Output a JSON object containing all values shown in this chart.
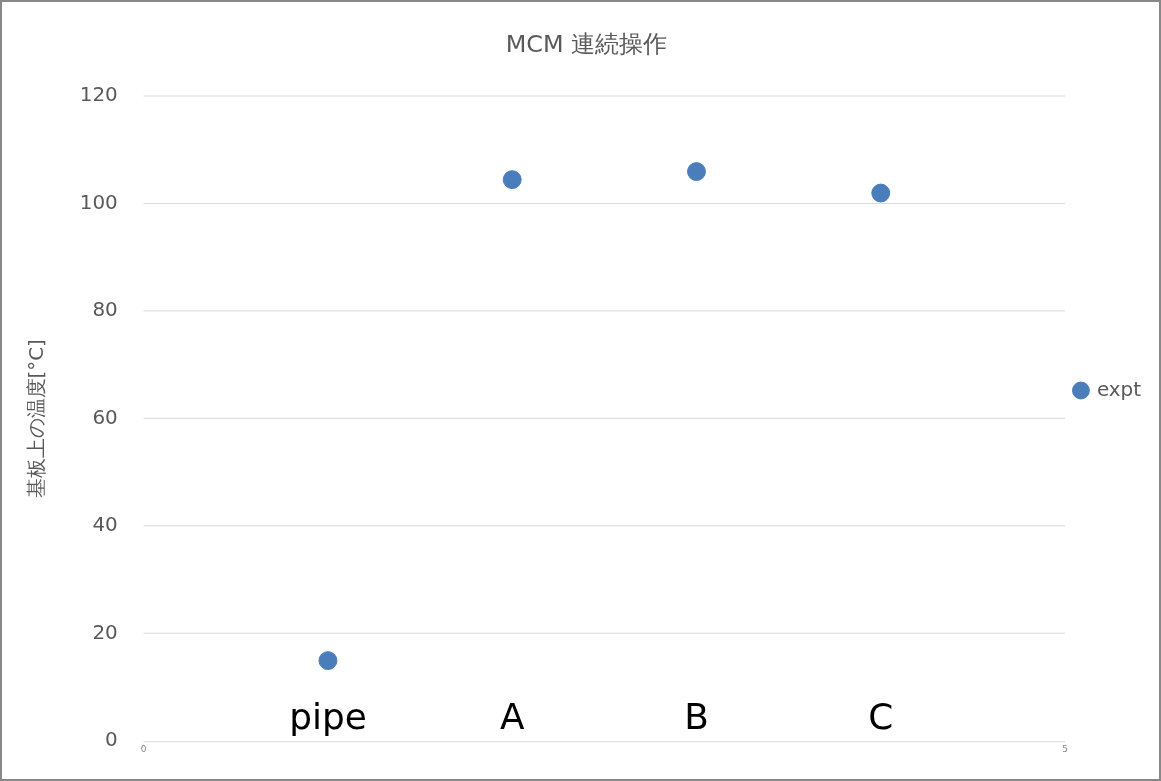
{
  "chart_data": {
    "type": "scatter",
    "title": "MCM 連続操作",
    "ylabel": "基板上の温度[°C]",
    "x": [
      1,
      2,
      3,
      4
    ],
    "series": [
      {
        "name": "expt",
        "color": "#4a7ebb",
        "values": [
          15,
          104.5,
          106,
          102
        ]
      }
    ],
    "xlim": [
      0,
      5
    ],
    "xticks": [
      0,
      5
    ],
    "ylim": [
      0,
      120
    ],
    "yticks": [
      0,
      20,
      40,
      60,
      80,
      100,
      120
    ],
    "grid": "y",
    "legend": "right",
    "marker": "circle",
    "annotations": [
      "pipe",
      "A",
      "B",
      "C"
    ]
  }
}
